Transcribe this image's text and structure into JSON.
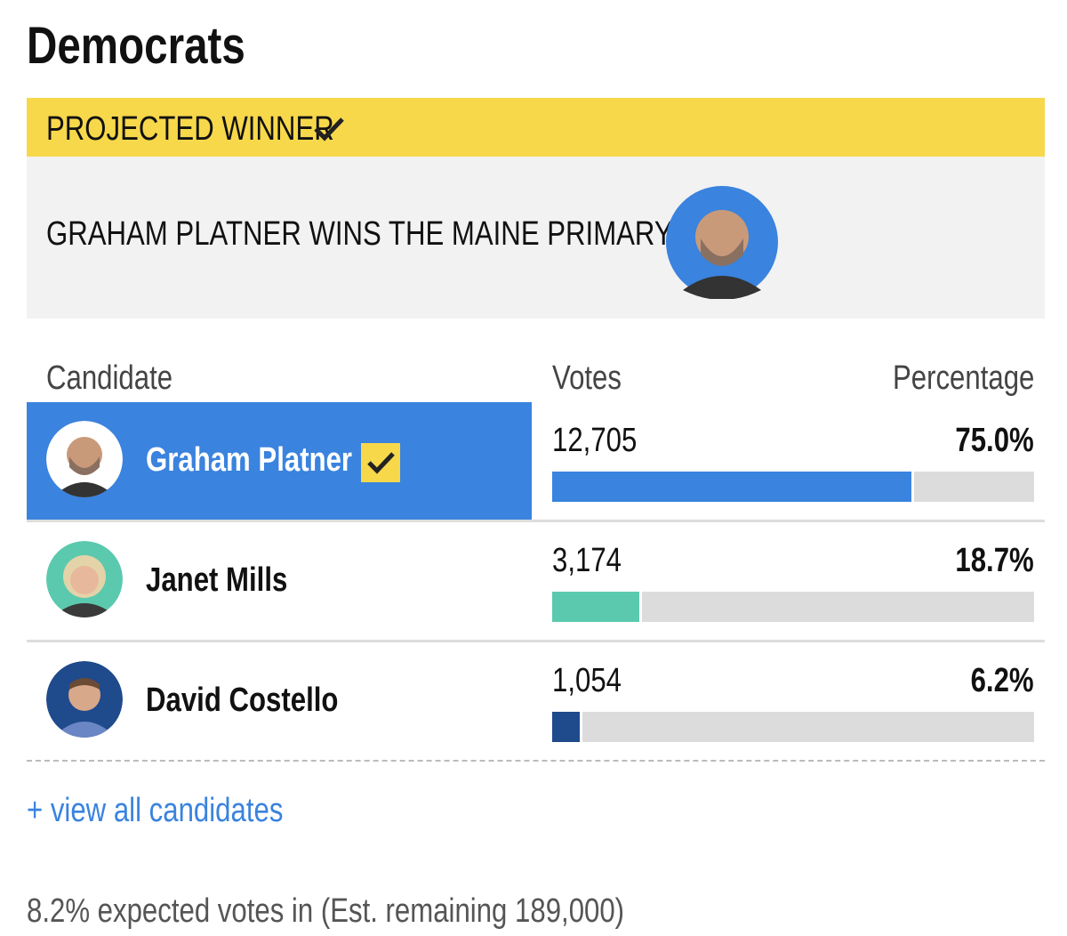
{
  "header": {
    "title": "Democrats"
  },
  "banner": {
    "label": "PROJECTED WINNER",
    "headline": "GRAHAM PLATNER WINS THE MAINE PRIMARY"
  },
  "table": {
    "columns": [
      "Candidate",
      "Votes",
      "Percentage"
    ],
    "rows": [
      {
        "name": "Graham Platner",
        "votes": "12,705",
        "pct": {
          "value": 75.0,
          "label": "75.0%"
        },
        "color": "#3a83de"
      },
      {
        "name": "Janet Mills",
        "votes": "3,174",
        "pct": {
          "value": 18.7,
          "label": "18.7%"
        },
        "color": "#5bc9ae"
      },
      {
        "name": "David Costello",
        "votes": "1,054",
        "pct": {
          "value": 6.2,
          "label": "6.2%"
        },
        "color": "#1f4a8c"
      }
    ]
  },
  "link": "+ view all candidates",
  "footer": "8.2% expected votes in (Est. remaining 189,000)"
}
